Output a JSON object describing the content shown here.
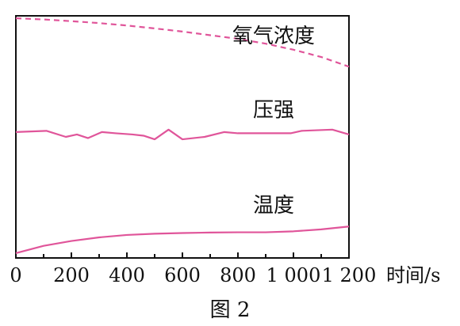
{
  "chart_data": {
    "type": "line",
    "xlabel": "时间/s",
    "xlim": [
      0,
      1200
    ],
    "x_ticks": [
      0,
      200,
      400,
      600,
      800,
      1000,
      1200
    ],
    "x_tick_labels": [
      "0",
      "200",
      "400",
      "600",
      "800",
      "1 000",
      "1 200"
    ],
    "grid": false,
    "caption": "图 2",
    "series": [
      {
        "name": "氧气浓度",
        "style": "dashed",
        "x": [
          0,
          100,
          200,
          300,
          400,
          500,
          600,
          700,
          800,
          900,
          1000,
          1100,
          1200
        ],
        "y": [
          0.99,
          0.985,
          0.978,
          0.97,
          0.96,
          0.948,
          0.935,
          0.92,
          0.905,
          0.885,
          0.86,
          0.83,
          0.79
        ]
      },
      {
        "name": "压强",
        "style": "solid",
        "x": [
          0,
          110,
          180,
          220,
          260,
          310,
          360,
          420,
          460,
          500,
          550,
          600,
          680,
          750,
          800,
          880,
          990,
          1030,
          1140,
          1200
        ],
        "y": [
          0.52,
          0.525,
          0.5,
          0.51,
          0.495,
          0.52,
          0.515,
          0.51,
          0.505,
          0.49,
          0.53,
          0.49,
          0.5,
          0.52,
          0.515,
          0.515,
          0.515,
          0.525,
          0.53,
          0.51
        ]
      },
      {
        "name": "温度",
        "style": "solid",
        "x": [
          0,
          100,
          200,
          300,
          400,
          500,
          600,
          700,
          800,
          900,
          1000,
          1100,
          1200
        ],
        "y": [
          0.02,
          0.05,
          0.07,
          0.085,
          0.095,
          0.1,
          0.103,
          0.105,
          0.106,
          0.106,
          0.11,
          0.118,
          0.13
        ]
      }
    ],
    "color": "#e0559a"
  }
}
